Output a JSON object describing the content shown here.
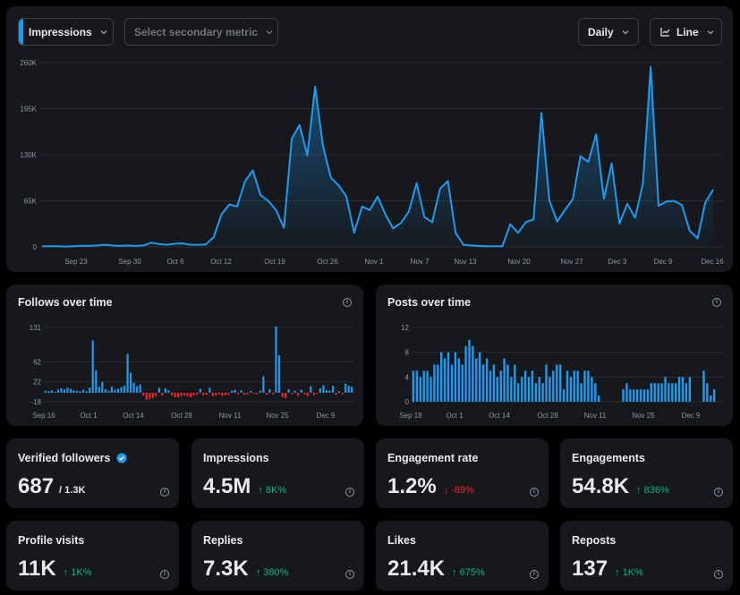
{
  "toolbar": {
    "primary_metric": "Impressions",
    "secondary_metric_placeholder": "Select secondary metric",
    "period": "Daily",
    "chart_type": "Line"
  },
  "chart_data": [
    {
      "type": "area",
      "title": "Impressions",
      "y_ticks": [
        "0",
        "65K",
        "130K",
        "195K",
        "260K"
      ],
      "ylim": [
        0,
        260000
      ],
      "x_ticks": [
        "Sep 23",
        "Sep 30",
        "Oct 6",
        "Oct 12",
        "Oct 19",
        "Oct 26",
        "Nov 1",
        "Nov 7",
        "Nov 13",
        "Nov 20",
        "Nov 27",
        "Dec 3",
        "Dec 9",
        "Dec 16"
      ],
      "values": [
        1000,
        1000,
        1000,
        500,
        1000,
        1500,
        1500,
        2000,
        3000,
        2000,
        1500,
        2000,
        1500,
        2000,
        6000,
        4000,
        3000,
        4500,
        5000,
        3000,
        3000,
        3500,
        14000,
        46000,
        60000,
        57000,
        92000,
        108000,
        73000,
        65000,
        52000,
        27000,
        153000,
        172000,
        129000,
        226000,
        142000,
        98000,
        87000,
        71000,
        20000,
        57000,
        52000,
        71000,
        46000,
        26000,
        34000,
        50000,
        90000,
        42000,
        35000,
        82000,
        93000,
        20000,
        3000,
        2000,
        1500,
        1000,
        1000,
        1000,
        32000,
        20000,
        35000,
        39000,
        189000,
        66000,
        36000,
        52000,
        67000,
        128000,
        120000,
        159000,
        68000,
        118000,
        33000,
        61000,
        41000,
        89000,
        254000,
        58000,
        64000,
        65000,
        59000,
        23000,
        12000,
        63000,
        81000
      ],
      "color": "#1d9bf0"
    },
    {
      "type": "bar",
      "title": "Follows over time",
      "y_ticks": [
        "-18",
        "22",
        "62",
        "131"
      ],
      "ylim": [
        -18,
        131
      ],
      "x_ticks": [
        "Sep 16",
        "Oct 1",
        "Oct 14",
        "Oct 28",
        "Nov 11",
        "Nov 25",
        "Dec 9"
      ],
      "values": [
        4,
        3,
        5,
        2,
        6,
        9,
        7,
        10,
        8,
        5,
        4,
        3,
        6,
        3,
        10,
        105,
        45,
        12,
        22,
        7,
        4,
        12,
        6,
        8,
        11,
        14,
        78,
        40,
        20,
        13,
        17,
        -6,
        -14,
        -12,
        -10,
        -7,
        10,
        -5,
        9,
        5,
        -5,
        -9,
        -9,
        -7,
        -5,
        -7,
        -9,
        -5,
        -4,
        8,
        -5,
        -4,
        10,
        -7,
        -6,
        -3,
        -7,
        -5,
        -4,
        4,
        6,
        -3,
        5,
        -4,
        -3,
        4,
        -2,
        -3,
        4,
        33,
        -4,
        7,
        -3,
        133,
        75,
        -9,
        -11,
        7,
        -3,
        4,
        -6,
        6,
        -3,
        -7,
        13,
        -5,
        -2,
        9,
        15,
        5,
        4,
        14,
        -4,
        3,
        -3,
        18,
        14,
        12
      ],
      "positive_color": "#1d9bf0",
      "negative_color": "#f4212e"
    },
    {
      "type": "bar",
      "title": "Posts over time",
      "y_ticks": [
        "0",
        "4",
        "8",
        "12"
      ],
      "ylim": [
        0,
        12
      ],
      "x_ticks": [
        "Sep 18",
        "Oct 1",
        "Oct 14",
        "Oct 28",
        "Nov 11",
        "Nov 25",
        "Dec 9"
      ],
      "values": [
        5,
        5,
        4,
        5,
        5,
        4,
        6,
        6,
        8,
        7,
        8,
        6,
        8,
        7,
        6,
        9,
        10,
        9,
        7,
        8,
        6,
        7,
        5,
        6,
        4,
        5,
        7,
        6,
        4,
        6,
        3,
        4,
        5,
        4,
        5,
        3,
        4,
        3,
        6,
        4,
        5,
        6,
        6,
        2,
        5,
        4,
        5,
        5,
        3,
        5,
        5,
        4,
        3,
        1,
        0,
        0,
        0,
        0,
        0,
        0,
        2,
        3,
        2,
        2,
        2,
        2,
        2,
        2,
        3,
        3,
        3,
        3,
        4,
        3,
        3,
        3,
        4,
        4,
        3,
        4,
        0,
        0,
        0,
        5,
        3,
        1,
        2,
        0,
        0
      ],
      "color": "#1d9bf0"
    }
  ],
  "follows": {
    "title": "Follows over time"
  },
  "posts": {
    "title": "Posts over time"
  },
  "stats": [
    {
      "label": "Verified followers",
      "value": "687",
      "sub": "/ 1.3K"
    },
    {
      "label": "Impressions",
      "value": "4.5M",
      "delta": "↑ 8K%",
      "dir": "up"
    },
    {
      "label": "Engagement rate",
      "value": "1.2%",
      "delta": "↓ -89%",
      "dir": "down"
    },
    {
      "label": "Engagements",
      "value": "54.8K",
      "delta": "↑ 836%",
      "dir": "up"
    },
    {
      "label": "Profile visits",
      "value": "11K",
      "delta": "↑ 1K%",
      "dir": "up"
    },
    {
      "label": "Replies",
      "value": "7.3K",
      "delta": "↑ 380%",
      "dir": "up"
    },
    {
      "label": "Likes",
      "value": "21.4K",
      "delta": "↑ 675%",
      "dir": "up"
    },
    {
      "label": "Reposts",
      "value": "137",
      "delta": "↑ 1K%",
      "dir": "up"
    }
  ],
  "info_glyph": "i"
}
